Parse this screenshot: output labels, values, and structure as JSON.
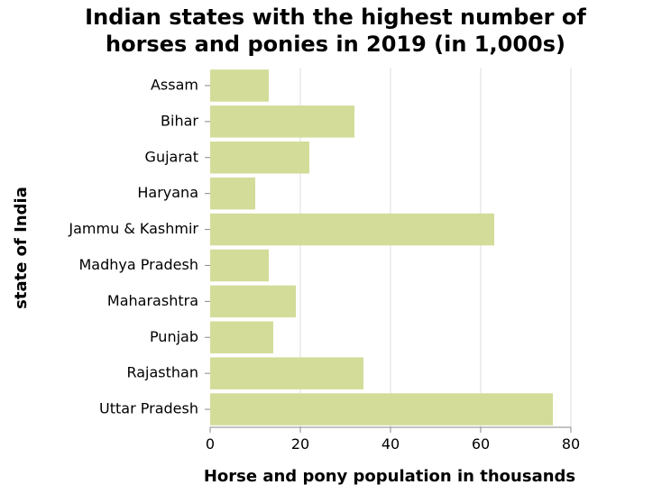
{
  "chart_data": {
    "type": "bar",
    "orientation": "horizontal",
    "title_lines": [
      "Indian states with the highest number of",
      "horses and ponies in 2019 (in 1,000s)"
    ],
    "xlabel": "Horse and pony population in thousands",
    "ylabel": "state of India",
    "xlim": [
      0,
      80
    ],
    "xticks": [
      0,
      20,
      40,
      60,
      80
    ],
    "grid": true,
    "bar_color": "#d3dc98",
    "categories": [
      "Assam",
      "Bihar",
      "Gujarat",
      "Haryana",
      "Jammu & Kashmir",
      "Madhya Pradesh",
      "Maharashtra",
      "Punjab",
      "Rajasthan",
      "Uttar Pradesh"
    ],
    "values": [
      13,
      32,
      22,
      10,
      63,
      13,
      19,
      14,
      34,
      76
    ]
  }
}
